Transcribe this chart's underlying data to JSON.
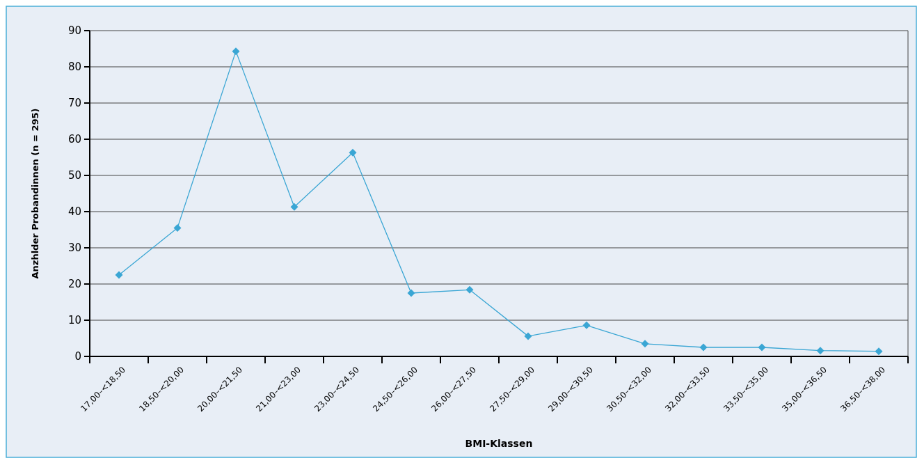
{
  "chart_data": {
    "type": "line",
    "xlabel": "BMI-Klassen",
    "ylabel": "Anzhlder Probandinnen (n = 295)",
    "categories": [
      "17,00–<18,50",
      "18,50–<20,00",
      "20,00–<21,50",
      "21,00–<23,00",
      "23,00–<24,50",
      "24,50–<26,00",
      "26,00–<27,50",
      "27,50–<29,00",
      "29,00–<30,50",
      "30,50–<32,00",
      "32,00–<33,50",
      "33,50–<35,00",
      "35,00–<36,50",
      "36,50–<38,00"
    ],
    "series": [
      {
        "color": "#3aa6d4",
        "values": [
          22.5,
          35.5,
          84.3,
          41.3,
          56.3,
          17.5,
          18.4,
          5.6,
          8.6,
          3.5,
          2.5,
          2.5,
          1.6,
          1.4
        ]
      }
    ],
    "ylim": [
      0,
      90
    ],
    "yticks": [
      0,
      10,
      20,
      30,
      40,
      50,
      60,
      70,
      80,
      90
    ],
    "grid": "y",
    "marker": "diamond"
  }
}
